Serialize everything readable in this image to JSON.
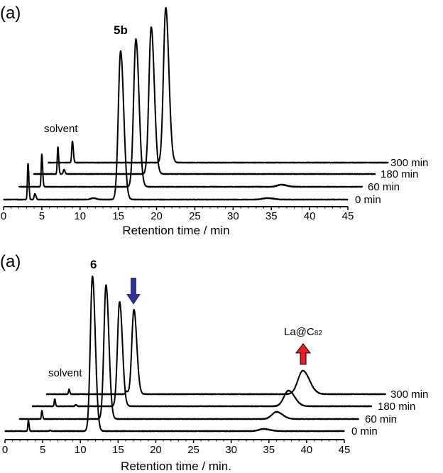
{
  "chart_data": [
    {
      "type": "line",
      "panel_label": "(a)",
      "xlabel": "Retention time / min",
      "ylabel": "",
      "xlim": [
        0,
        45
      ],
      "xticks": [
        "0",
        "5",
        "10",
        "15",
        "20",
        "25",
        "30",
        "35",
        "40",
        "45"
      ],
      "grid": false,
      "annotations": {
        "compound": "5b",
        "solvent": "solvent"
      },
      "series": [
        {
          "name": "0 min",
          "baseline": 0,
          "x_range": [
            0,
            45.0
          ],
          "peaks": [
            {
              "x": 3.2,
              "h": 51,
              "w": 0.08
            },
            {
              "x": 4.1,
              "h": 8,
              "w": 0.1
            },
            {
              "x": 11.7,
              "h": 2,
              "w": 0.3
            },
            {
              "x": 15.3,
              "h": 209,
              "w": 0.3
            },
            {
              "x": 34.5,
              "h": 2,
              "w": 0.6
            }
          ]
        },
        {
          "name": "60 min",
          "baseline": 18,
          "x_range": [
            2.0,
            46.9
          ],
          "peaks": [
            {
              "x": 5.0,
              "h": 46,
              "w": 0.08
            },
            {
              "x": 17.3,
              "h": 208,
              "w": 0.3
            },
            {
              "x": 36.3,
              "h": 3,
              "w": 0.5
            }
          ]
        },
        {
          "name": "180 min",
          "baseline": 36,
          "x_range": [
            3.9,
            48.6
          ],
          "peaks": [
            {
              "x": 7.1,
              "h": 38,
              "w": 0.08
            },
            {
              "x": 7.9,
              "h": 6,
              "w": 0.1
            },
            {
              "x": 19.3,
              "h": 207,
              "w": 0.3
            }
          ]
        },
        {
          "name": "300 min",
          "baseline": 52,
          "x_range": [
            5.8,
            50.3
          ],
          "peaks": [
            {
              "x": 9.0,
              "h": 30,
              "w": 0.09
            },
            {
              "x": 21.2,
              "h": 218,
              "w": 0.3
            }
          ]
        }
      ]
    },
    {
      "type": "line",
      "panel_label": "(a)",
      "xlabel": "Retention time / min.",
      "ylabel": "",
      "xlim": [
        0,
        45
      ],
      "xticks": [
        "0",
        "5",
        "10",
        "15",
        "20",
        "25",
        "30",
        "35",
        "40",
        "45"
      ],
      "grid": false,
      "annotations": {
        "compound": "6",
        "solvent": "solvent",
        "product": "La@C",
        "product_sub": "82",
        "decrease_arrow_color": "#2e3192",
        "increase_arrow_color": "#ed1c24"
      },
      "series": [
        {
          "name": "0 min",
          "baseline": 0,
          "x_range": [
            0,
            45.0
          ],
          "peaks": [
            {
              "x": 3.1,
              "h": 15,
              "w": 0.07
            },
            {
              "x": 6.0,
              "h": 1,
              "w": 0.1
            },
            {
              "x": 11.6,
              "h": 218,
              "w": 0.28
            },
            {
              "x": 34.3,
              "h": 3,
              "w": 0.6
            }
          ]
        },
        {
          "name": "60 min",
          "baseline": 17,
          "x_range": [
            1.9,
            46.9
          ],
          "peaks": [
            {
              "x": 4.9,
              "h": 12,
              "w": 0.07
            },
            {
              "x": 13.4,
              "h": 189,
              "w": 0.28
            },
            {
              "x": 36.0,
              "h": 10,
              "w": 0.6
            }
          ]
        },
        {
          "name": "180 min",
          "baseline": 35,
          "x_range": [
            3.6,
            48.6
          ],
          "peaks": [
            {
              "x": 6.6,
              "h": 10,
              "w": 0.07
            },
            {
              "x": 9.4,
              "h": 2,
              "w": 0.1
            },
            {
              "x": 15.2,
              "h": 147,
              "w": 0.28
            },
            {
              "x": 37.6,
              "h": 22,
              "w": 0.6
            }
          ]
        },
        {
          "name": "300 min",
          "baseline": 52,
          "x_range": [
            5.5,
            50.5
          ],
          "peaks": [
            {
              "x": 8.5,
              "h": 7,
              "w": 0.07
            },
            {
              "x": 16.1,
              "h": 4,
              "w": 0.12
            },
            {
              "x": 17.1,
              "h": 119,
              "w": 0.28
            },
            {
              "x": 39.5,
              "h": 33,
              "w": 0.65
            }
          ]
        }
      ]
    }
  ]
}
